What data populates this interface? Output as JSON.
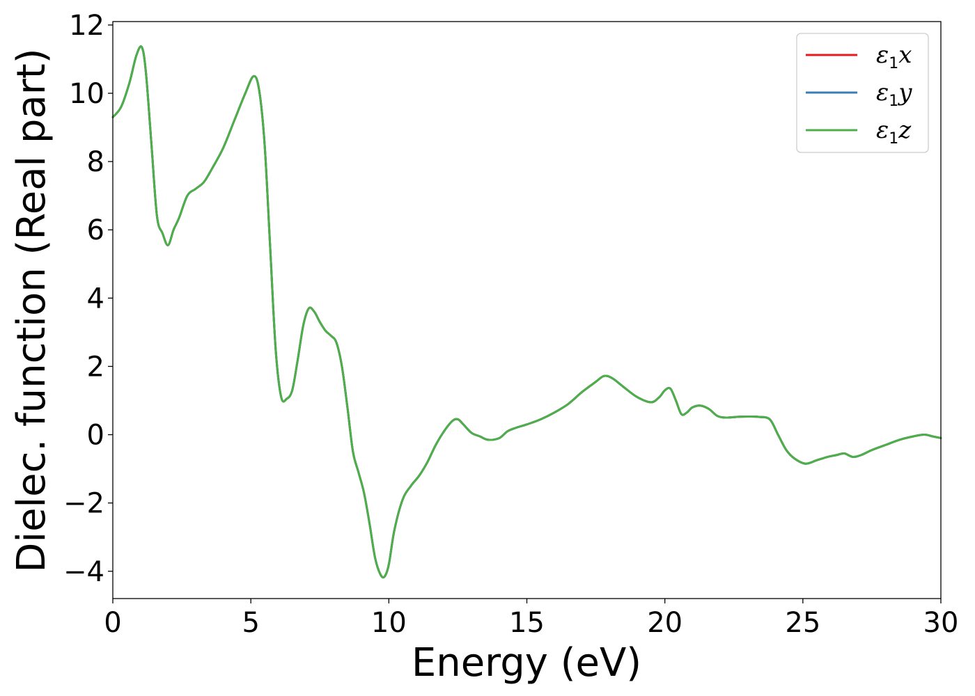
{
  "chart_data": {
    "type": "line",
    "xlabel": "Energy (eV)",
    "ylabel": "Dielec. function (Real part)",
    "xlim": [
      0,
      30
    ],
    "ylim": [
      -4.8,
      12.1
    ],
    "xticks": [
      0,
      5,
      10,
      15,
      20,
      25,
      30
    ],
    "xtick_labels": [
      "0",
      "5",
      "10",
      "15",
      "20",
      "25",
      "30"
    ],
    "yticks": [
      -4,
      -2,
      0,
      2,
      4,
      6,
      8,
      10,
      12
    ],
    "ytick_labels": [
      "−4",
      "−2",
      "0",
      "2",
      "4",
      "6",
      "8",
      "10",
      "12"
    ],
    "grid": false,
    "legend_position": "top-right",
    "x": [
      0,
      0.3,
      0.6,
      0.85,
      1.05,
      1.2,
      1.4,
      1.6,
      1.8,
      2.0,
      2.2,
      2.4,
      2.7,
      3.0,
      3.3,
      3.6,
      4.0,
      4.4,
      4.8,
      5.1,
      5.3,
      5.5,
      5.7,
      5.9,
      6.1,
      6.3,
      6.5,
      6.7,
      6.9,
      7.1,
      7.3,
      7.5,
      7.7,
      7.9,
      8.1,
      8.3,
      8.5,
      8.7,
      8.9,
      9.1,
      9.3,
      9.5,
      9.7,
      9.85,
      10.0,
      10.2,
      10.5,
      10.8,
      11.1,
      11.4,
      11.7,
      12.0,
      12.3,
      12.5,
      12.7,
      13.0,
      13.3,
      13.6,
      14.0,
      14.3,
      14.6,
      15.0,
      15.5,
      16.0,
      16.5,
      17.0,
      17.5,
      17.8,
      18.1,
      18.5,
      19.0,
      19.5,
      19.8,
      20.0,
      20.2,
      20.4,
      20.6,
      20.8,
      21.0,
      21.3,
      21.6,
      21.9,
      22.2,
      22.6,
      23.0,
      23.4,
      23.8,
      24.1,
      24.4,
      24.7,
      25.1,
      25.5,
      25.9,
      26.2,
      26.5,
      26.8,
      27.1,
      27.5,
      28.0,
      28.5,
      29.0,
      29.4,
      29.7,
      30.0
    ],
    "series": [
      {
        "name": "ε1x",
        "color": "#e41a1c",
        "y": [
          9.3,
          9.6,
          10.3,
          11.1,
          11.35,
          10.6,
          8.5,
          6.4,
          5.9,
          5.55,
          6.0,
          6.35,
          7.0,
          7.2,
          7.4,
          7.8,
          8.4,
          9.2,
          10.0,
          10.5,
          10.1,
          8.5,
          5.5,
          2.5,
          1.1,
          1.05,
          1.3,
          2.2,
          3.2,
          3.7,
          3.6,
          3.3,
          3.05,
          2.9,
          2.7,
          2.0,
          0.8,
          -0.5,
          -1.1,
          -1.7,
          -2.6,
          -3.6,
          -4.1,
          -4.15,
          -3.8,
          -2.8,
          -1.9,
          -1.5,
          -1.2,
          -0.8,
          -0.3,
          0.1,
          0.4,
          0.45,
          0.3,
          0.05,
          -0.05,
          -0.15,
          -0.1,
          0.1,
          0.2,
          0.3,
          0.45,
          0.65,
          0.9,
          1.25,
          1.55,
          1.72,
          1.65,
          1.4,
          1.1,
          0.95,
          1.1,
          1.3,
          1.35,
          1.0,
          0.6,
          0.65,
          0.8,
          0.85,
          0.75,
          0.55,
          0.5,
          0.52,
          0.53,
          0.52,
          0.45,
          0.0,
          -0.45,
          -0.7,
          -0.85,
          -0.75,
          -0.65,
          -0.6,
          -0.55,
          -0.65,
          -0.6,
          -0.45,
          -0.3,
          -0.15,
          -0.05,
          0.0,
          -0.05,
          -0.1
        ]
      },
      {
        "name": "ε1y",
        "color": "#377eb8",
        "y": [
          9.3,
          9.6,
          10.3,
          11.1,
          11.35,
          10.6,
          8.5,
          6.4,
          5.9,
          5.55,
          6.0,
          6.35,
          7.0,
          7.2,
          7.4,
          7.8,
          8.4,
          9.2,
          10.0,
          10.5,
          10.1,
          8.5,
          5.5,
          2.5,
          1.1,
          1.05,
          1.3,
          2.2,
          3.2,
          3.7,
          3.6,
          3.3,
          3.05,
          2.9,
          2.7,
          2.0,
          0.8,
          -0.5,
          -1.1,
          -1.7,
          -2.6,
          -3.6,
          -4.1,
          -4.15,
          -3.8,
          -2.8,
          -1.9,
          -1.5,
          -1.2,
          -0.8,
          -0.3,
          0.1,
          0.4,
          0.45,
          0.3,
          0.05,
          -0.05,
          -0.15,
          -0.1,
          0.1,
          0.2,
          0.3,
          0.45,
          0.65,
          0.9,
          1.25,
          1.55,
          1.72,
          1.65,
          1.4,
          1.1,
          0.95,
          1.1,
          1.3,
          1.35,
          1.0,
          0.6,
          0.65,
          0.8,
          0.85,
          0.75,
          0.55,
          0.5,
          0.52,
          0.53,
          0.52,
          0.45,
          0.0,
          -0.45,
          -0.7,
          -0.85,
          -0.75,
          -0.65,
          -0.6,
          -0.55,
          -0.65,
          -0.6,
          -0.45,
          -0.3,
          -0.15,
          -0.05,
          0.0,
          -0.05,
          -0.1
        ]
      },
      {
        "name": "ε1z",
        "color": "#4daf4a",
        "y": [
          9.3,
          9.6,
          10.3,
          11.1,
          11.35,
          10.6,
          8.5,
          6.4,
          5.9,
          5.55,
          6.0,
          6.35,
          7.0,
          7.2,
          7.4,
          7.8,
          8.4,
          9.2,
          10.0,
          10.5,
          10.1,
          8.5,
          5.5,
          2.5,
          1.1,
          1.05,
          1.3,
          2.2,
          3.2,
          3.7,
          3.6,
          3.3,
          3.05,
          2.9,
          2.7,
          2.0,
          0.8,
          -0.5,
          -1.1,
          -1.7,
          -2.6,
          -3.6,
          -4.1,
          -4.15,
          -3.8,
          -2.8,
          -1.9,
          -1.5,
          -1.2,
          -0.8,
          -0.3,
          0.1,
          0.4,
          0.45,
          0.3,
          0.05,
          -0.05,
          -0.15,
          -0.1,
          0.1,
          0.2,
          0.3,
          0.45,
          0.65,
          0.9,
          1.25,
          1.55,
          1.72,
          1.65,
          1.4,
          1.1,
          0.95,
          1.1,
          1.3,
          1.35,
          1.0,
          0.6,
          0.65,
          0.8,
          0.85,
          0.75,
          0.55,
          0.5,
          0.52,
          0.53,
          0.52,
          0.45,
          0.0,
          -0.45,
          -0.7,
          -0.85,
          -0.75,
          -0.65,
          -0.6,
          -0.55,
          -0.65,
          -0.6,
          -0.45,
          -0.3,
          -0.15,
          -0.05,
          0.0,
          -0.05,
          -0.1
        ]
      }
    ]
  }
}
